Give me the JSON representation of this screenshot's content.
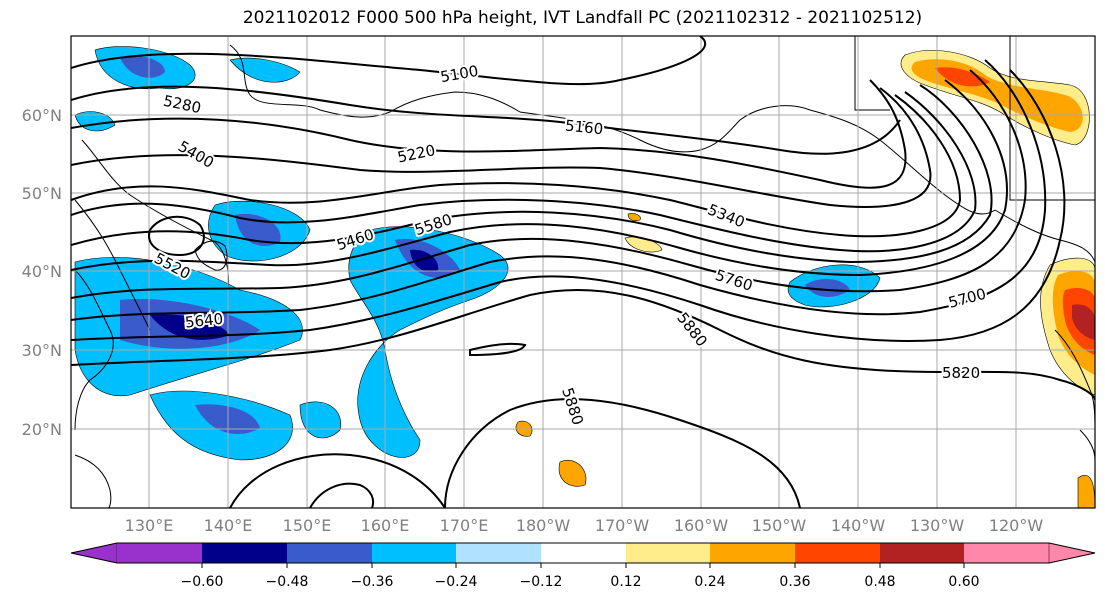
{
  "title": "2021102012 F000 500 hPa height, IVT Landfall PC (2021102312 - 2021102512)",
  "lat_labels": [
    "60°N",
    "50°N",
    "40°N",
    "30°N",
    "20°N"
  ],
  "lon_labels": [
    "130°E",
    "140°E",
    "150°E",
    "160°E",
    "170°E",
    "180°W",
    "170°W",
    "160°W",
    "150°W",
    "140°W",
    "130°W",
    "120°W"
  ],
  "contour_labels": [
    "5100",
    "5160",
    "5220",
    "5280",
    "5340",
    "5400",
    "5460",
    "5520",
    "5580",
    "5640",
    "5700",
    "5760",
    "5820",
    "5880",
    "5880"
  ],
  "colorbar": {
    "tick_labels": [
      "−0.60",
      "−0.48",
      "−0.36",
      "−0.24",
      "−0.12",
      "0.12",
      "0.24",
      "0.36",
      "0.48",
      "0.60"
    ],
    "colors": [
      "#9932cc",
      "#00008b",
      "#3a5bcc",
      "#00bfff",
      "#b0e2ff",
      "#ffffff",
      "#ffec8b",
      "#ffa500",
      "#ff4500",
      "#b22222",
      "#ff88aa",
      "#ff88aa"
    ]
  }
}
